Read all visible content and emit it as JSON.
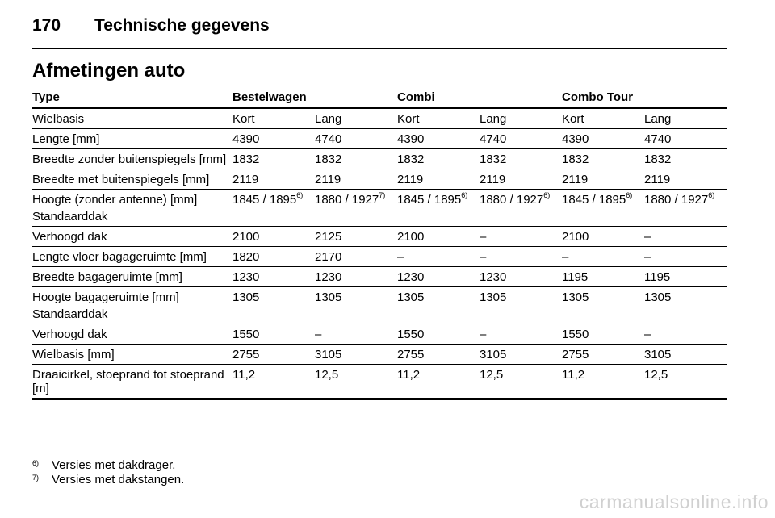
{
  "header": {
    "page_number": "170",
    "title": "Technische gegevens"
  },
  "section_title": "Afmetingen auto",
  "columns": [
    "Type",
    "Bestelwagen",
    "",
    "Combi",
    "",
    "Combo Tour",
    ""
  ],
  "rows": [
    {
      "label": "Wielbasis",
      "values": [
        "Kort",
        "Lang",
        "Kort",
        "Lang",
        "Kort",
        "Lang"
      ]
    },
    {
      "label": "Lengte [mm]",
      "values": [
        "4390",
        "4740",
        "4390",
        "4740",
        "4390",
        "4740"
      ]
    },
    {
      "label": "Breedte zonder buitenspiegels [mm]",
      "values": [
        "1832",
        "1832",
        "1832",
        "1832",
        "1832",
        "1832"
      ]
    },
    {
      "label": "Breedte met buitenspiegels [mm]",
      "values": [
        "2119",
        "2119",
        "2119",
        "2119",
        "2119",
        "2119"
      ]
    },
    {
      "label": "Hoogte (zonder antenne) [mm]",
      "values": [
        {
          "v": "1845 / 1895",
          "n": "6)"
        },
        {
          "v": "1880 / 1927",
          "n": "7)"
        },
        {
          "v": "1845 / 1895",
          "n": "6)"
        },
        {
          "v": "1880 / 1927",
          "n": "6)"
        },
        {
          "v": "1845 / 1895",
          "n": "6)"
        },
        {
          "v": "1880 / 1927",
          "n": "6)"
        }
      ],
      "sub_label": "Standaarddak"
    },
    {
      "label": "Verhoogd dak",
      "values": [
        "2100",
        "2125",
        "2100",
        "–",
        "2100",
        "–"
      ]
    },
    {
      "label": "Lengte vloer bagageruimte [mm]",
      "values": [
        "1820",
        "2170",
        "–",
        "–",
        "–",
        "–"
      ]
    },
    {
      "label": "Breedte bagageruimte [mm]",
      "values": [
        "1230",
        "1230",
        "1230",
        "1230",
        "1195",
        "1195"
      ]
    },
    {
      "label": "Hoogte bagageruimte [mm]",
      "values": [
        "1305",
        "1305",
        "1305",
        "1305",
        "1305",
        "1305"
      ],
      "sub_label": "Standaarddak"
    },
    {
      "label": "Verhoogd dak",
      "values": [
        "1550",
        "–",
        "1550",
        "–",
        "1550",
        "–"
      ]
    },
    {
      "label": "Wielbasis [mm]",
      "values": [
        "2755",
        "3105",
        "2755",
        "3105",
        "2755",
        "3105"
      ]
    },
    {
      "label": "Draaicirkel, stoeprand tot stoeprand [m]",
      "values": [
        "11,2",
        "12,5",
        "11,2",
        "12,5",
        "11,2",
        "12,5"
      ]
    }
  ],
  "footnotes": [
    {
      "mark": "6)",
      "text": "Versies met dakdrager."
    },
    {
      "mark": "7)",
      "text": "Versies met dakstangen."
    }
  ],
  "watermark": "carmanualsonline.info"
}
